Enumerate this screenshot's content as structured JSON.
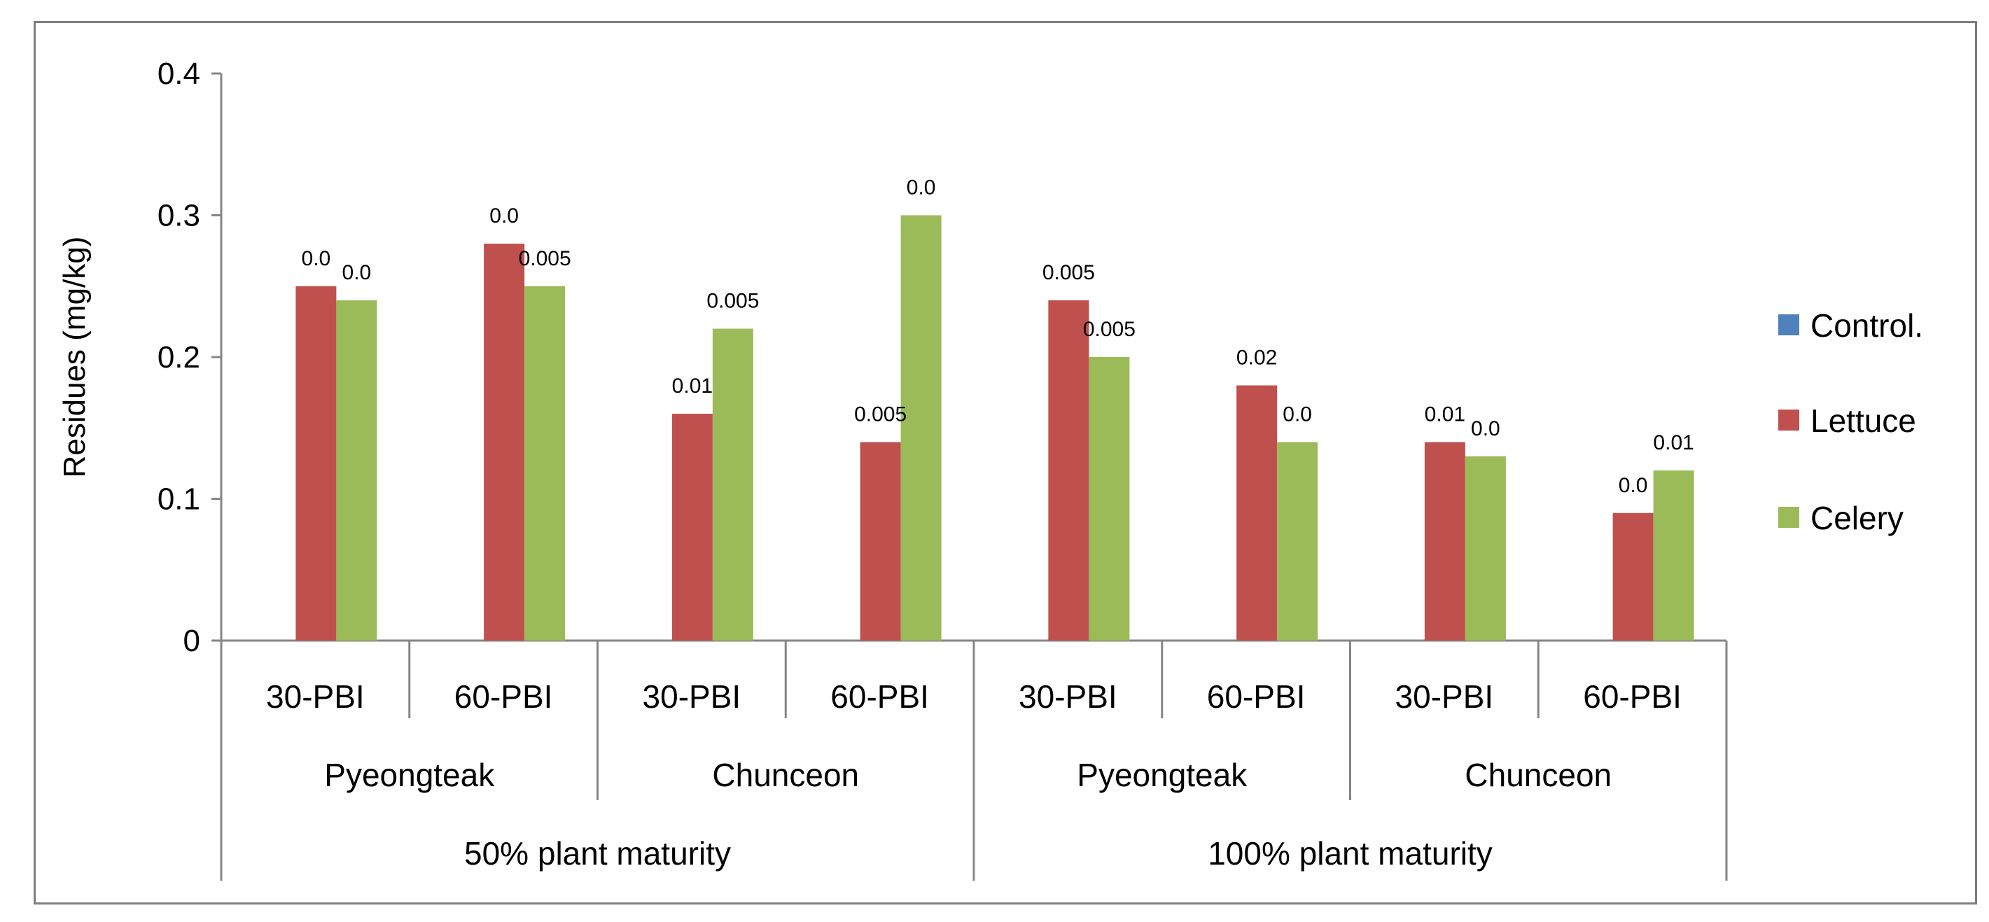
{
  "chart_data": {
    "type": "bar",
    "title": "",
    "xlabel": "",
    "ylabel": "Residues (mg/kg)",
    "ylim": [
      0,
      0.4
    ],
    "yticks": [
      "0",
      "0.1",
      "0.2",
      "0.3",
      "0.4"
    ],
    "ytick_values": [
      0,
      0.1,
      0.2,
      0.3,
      0.4
    ],
    "grid": false,
    "legend_position": "right",
    "categories": [
      "30-PBI",
      "60-PBI",
      "30-PBI",
      "60-PBI",
      "30-PBI",
      "60-PBI",
      "30-PBI",
      "60-PBI"
    ],
    "groups_level2": [
      "Pyeongteak",
      "Chunceon",
      "Pyeongteak",
      "Chunceon"
    ],
    "groups_level1": [
      "50% plant maturity",
      "100% plant maturity"
    ],
    "series": [
      {
        "name": "Control.",
        "color": "#4f81bd",
        "values": [
          0,
          0,
          0,
          0,
          0,
          0,
          0,
          0
        ],
        "labels": [
          "",
          "",
          "",
          "",
          "",
          "",
          "",
          ""
        ]
      },
      {
        "name": "Lettuce",
        "color": "#c0504d",
        "values": [
          0.25,
          0.28,
          0.16,
          0.14,
          0.24,
          0.18,
          0.14,
          0.09
        ],
        "labels": [
          "0.0",
          "0.0",
          "0.01",
          "0.005",
          "0.005",
          "0.02",
          "0.01",
          "0.0"
        ]
      },
      {
        "name": "Celery",
        "color": "#9bbb59",
        "values": [
          0.24,
          0.25,
          0.22,
          0.3,
          0.2,
          0.14,
          0.13,
          0.12
        ],
        "labels": [
          "0.0",
          "0.005",
          "0.005",
          "0.0",
          "0.005",
          "0.0",
          "0.0",
          "0.01"
        ]
      }
    ]
  }
}
